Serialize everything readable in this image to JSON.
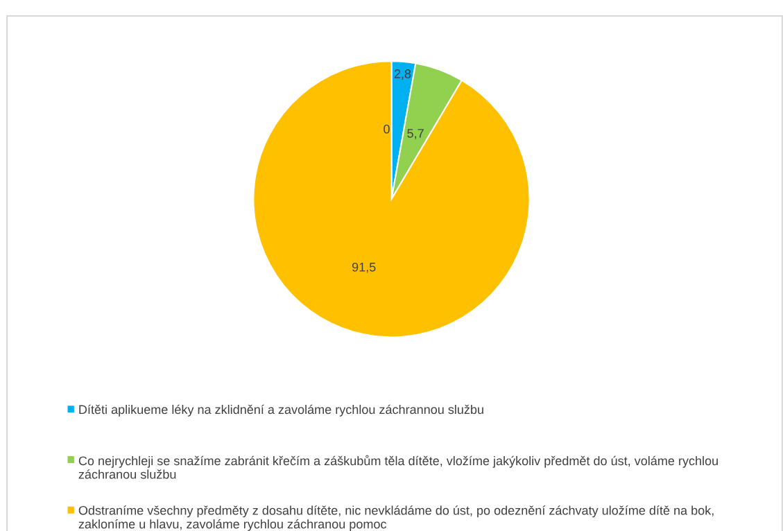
{
  "chart_data": {
    "type": "pie",
    "categories": [
      "Dítěti aplikueme léky na zklidnění a zavoláme rychlou záchrannou službu",
      "Co nejrychleji se snažíme zabránit křečím a záškubům těla dítěte, vložíme jakýkoliv předmět do úst, voláme rychlou záchranou službu",
      "Odstraníme všechny předměty z dosahu dítěte, nic nevkládáme do úst, po odeznění záchvaty uložíme dítě na bok, zakloníme u hlavu, zavoláme rychlou záchranou pomoc",
      null
    ],
    "values": [
      2.8,
      5.7,
      91.5,
      0
    ],
    "colors": [
      "#00b0f0",
      "#92d050",
      "#ffc000",
      "#a5a5a5"
    ],
    "value_labels": [
      "2,8",
      "5,7",
      "91,5",
      "0"
    ],
    "legend": "bottom"
  }
}
